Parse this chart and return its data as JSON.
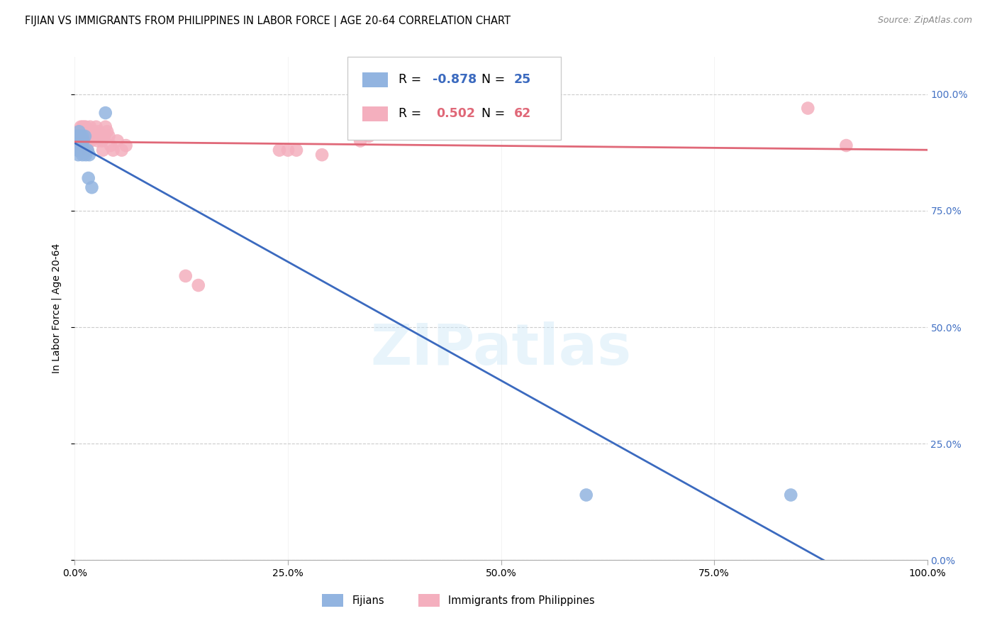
{
  "title": "FIJIAN VS IMMIGRANTS FROM PHILIPPINES IN LABOR FORCE | AGE 20-64 CORRELATION CHART",
  "source_text": "Source: ZipAtlas.com",
  "ylabel": "In Labor Force | Age 20-64",
  "xlim": [
    0.0,
    1.0
  ],
  "ylim": [
    0.0,
    1.08
  ],
  "legend_r_fijian": "-0.878",
  "legend_n_fijian": "25",
  "legend_r_phil": "0.502",
  "legend_n_phil": "62",
  "fijian_color": "#92b4e0",
  "phil_color": "#f4afbe",
  "fijian_line_color": "#3b6abf",
  "phil_line_color": "#e06878",
  "right_axis_color": "#4472c4",
  "fijian_points_x": [
    0.002,
    0.003,
    0.003,
    0.004,
    0.004,
    0.005,
    0.005,
    0.006,
    0.006,
    0.007,
    0.007,
    0.008,
    0.009,
    0.009,
    0.01,
    0.011,
    0.012,
    0.013,
    0.015,
    0.017,
    0.036,
    0.016,
    0.02,
    0.6,
    0.84
  ],
  "fijian_points_y": [
    0.91,
    0.9,
    0.88,
    0.91,
    0.87,
    0.92,
    0.88,
    0.91,
    0.88,
    0.9,
    0.88,
    0.89,
    0.91,
    0.87,
    0.9,
    0.88,
    0.91,
    0.87,
    0.88,
    0.87,
    0.96,
    0.82,
    0.8,
    0.14,
    0.14
  ],
  "phil_points_x": [
    0.002,
    0.003,
    0.004,
    0.004,
    0.005,
    0.005,
    0.006,
    0.006,
    0.007,
    0.007,
    0.007,
    0.008,
    0.008,
    0.009,
    0.009,
    0.01,
    0.01,
    0.011,
    0.011,
    0.012,
    0.012,
    0.013,
    0.013,
    0.014,
    0.015,
    0.015,
    0.016,
    0.016,
    0.017,
    0.018,
    0.018,
    0.019,
    0.02,
    0.021,
    0.022,
    0.023,
    0.025,
    0.025,
    0.027,
    0.028,
    0.03,
    0.032,
    0.033,
    0.035,
    0.036,
    0.038,
    0.04,
    0.042,
    0.045,
    0.05,
    0.055,
    0.06,
    0.13,
    0.145,
    0.24,
    0.25,
    0.26,
    0.29,
    0.335,
    0.345,
    0.86,
    0.905
  ],
  "phil_points_y": [
    0.9,
    0.91,
    0.9,
    0.92,
    0.91,
    0.9,
    0.92,
    0.88,
    0.93,
    0.91,
    0.89,
    0.92,
    0.9,
    0.93,
    0.9,
    0.91,
    0.89,
    0.93,
    0.91,
    0.92,
    0.9,
    0.93,
    0.91,
    0.91,
    0.92,
    0.88,
    0.91,
    0.9,
    0.92,
    0.93,
    0.91,
    0.9,
    0.92,
    0.91,
    0.92,
    0.91,
    0.93,
    0.91,
    0.9,
    0.92,
    0.91,
    0.9,
    0.88,
    0.91,
    0.93,
    0.92,
    0.91,
    0.89,
    0.88,
    0.9,
    0.88,
    0.89,
    0.61,
    0.59,
    0.88,
    0.88,
    0.88,
    0.87,
    0.9,
    0.91,
    0.97,
    0.89
  ],
  "watermark": "ZIPatlas",
  "background_color": "#ffffff",
  "grid_color": "#cccccc",
  "title_fontsize": 10.5,
  "source_fontsize": 9,
  "ytick_labels": [
    "0.0%",
    "25.0%",
    "50.0%",
    "75.0%",
    "100.0%"
  ],
  "xtick_labels": [
    "0.0%",
    "25.0%",
    "50.0%",
    "75.0%",
    "100.0%"
  ],
  "ytick_vals": [
    0.0,
    0.25,
    0.5,
    0.75,
    1.0
  ],
  "xtick_vals": [
    0.0,
    0.25,
    0.5,
    0.75,
    1.0
  ]
}
